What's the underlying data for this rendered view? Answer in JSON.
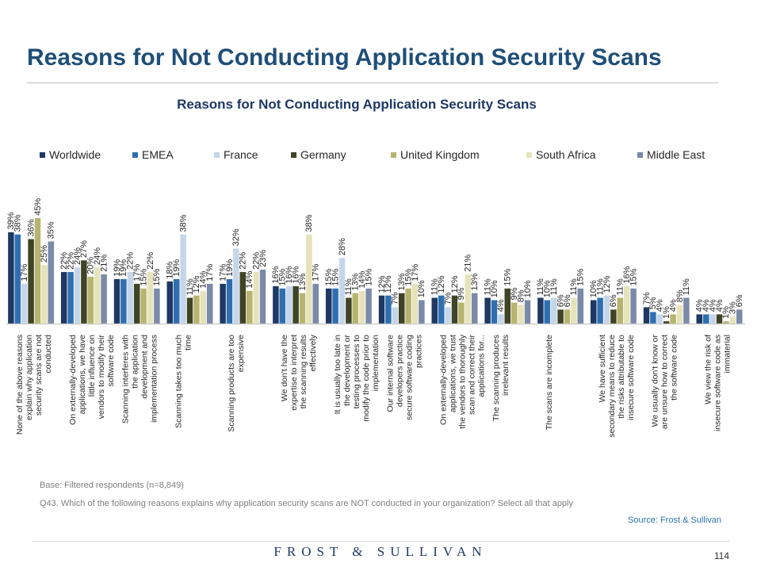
{
  "page": {
    "title": "Reasons for Not Conducting Application Security Scans",
    "base_note": "Base: Filtered respondents (n=8,849)",
    "question_note": "Q43. Which of the following reasons explains why application security scans are NOT conducted in your organization? Select all that apply",
    "source": "Source: Frost & Sullivan",
    "brand": "FROST & SULLIVAN",
    "page_number": "114"
  },
  "chart_data": {
    "type": "bar",
    "title": "Reasons for Not Conducting Application Security Scans",
    "legend_position": "top",
    "grid": false,
    "ylim": [
      0,
      50
    ],
    "categories": [
      "None of the above reasons explain why application security scans are not conducted",
      "On externally-developed applications, we have little influence on vendors to modify their software code",
      "Scanning interferes with the application development and implementation process",
      "Scanning takes too much time",
      "Scanning products are too expensive",
      "We don't have the expertise to interpret the scanning results effectively",
      "It is usually too late in the development or testing processes to modify the code prior to implementation",
      "Our internal software developers practice secure software coding practices",
      "On externally-developed applications, we trust the vendors to thoroughly scan and correct their applications for...",
      "The scanning produces irrelevant results",
      "The scans are incomplete",
      "We have sufficient secondary means to reduce the risks attributable to insecure software code",
      "We usually don't know or are unsure how to correct the software code",
      "We view the risk of insecure software code as immaterial"
    ],
    "series": [
      {
        "name": "Worldwide",
        "color": "#1f3864",
        "values": [
          39,
          22,
          19,
          18,
          17,
          16,
          15,
          12,
          11,
          11,
          11,
          10,
          7,
          4
        ]
      },
      {
        "name": "EMEA",
        "color": "#2e6fb0",
        "values": [
          38,
          22,
          19,
          19,
          19,
          15,
          15,
          12,
          12,
          10,
          10,
          11,
          5,
          4
        ]
      },
      {
        "name": "France",
        "color": "#c5d6ea",
        "values": [
          17,
          24,
          22,
          38,
          32,
          16,
          28,
          7,
          7,
          4,
          11,
          12,
          4,
          4
        ]
      },
      {
        "name": "Germany",
        "color": "#404426",
        "values": [
          36,
          27,
          17,
          11,
          22,
          16,
          11,
          13,
          12,
          15,
          6,
          6,
          1,
          4
        ]
      },
      {
        "name": "United Kingdom",
        "color": "#b7b46f",
        "values": [
          45,
          20,
          15,
          12,
          14,
          13,
          13,
          15,
          9,
          9,
          6,
          11,
          4,
          1
        ]
      },
      {
        "name": "South Africa",
        "color": "#e6e3bb",
        "values": [
          25,
          24,
          22,
          14,
          22,
          38,
          14,
          17,
          21,
          8,
          11,
          16,
          8,
          3
        ]
      },
      {
        "name": "Middle East",
        "color": "#7a8aa8",
        "values": [
          35,
          21,
          15,
          17,
          23,
          17,
          15,
          10,
          13,
          10,
          15,
          15,
          11,
          6
        ]
      }
    ]
  }
}
